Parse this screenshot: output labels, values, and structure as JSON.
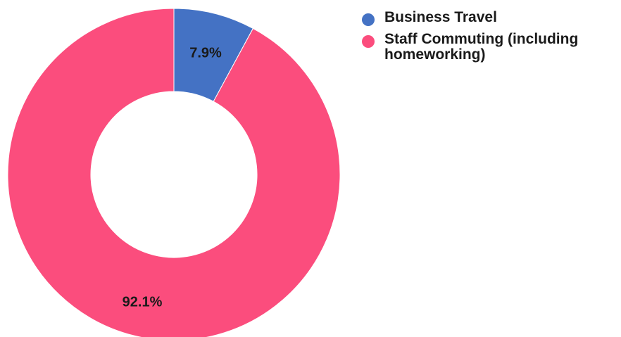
{
  "chart_data": {
    "type": "pie",
    "variant": "donut",
    "slices": [
      {
        "label": "Business Travel",
        "value": 7.9,
        "value_label": "7.9%",
        "color": "#4472c4"
      },
      {
        "label": "Staff Commuting (including homeworking)",
        "value": 92.1,
        "value_label": "92.1%",
        "color": "#fb4d7d"
      }
    ],
    "legend_position": "top-right"
  }
}
